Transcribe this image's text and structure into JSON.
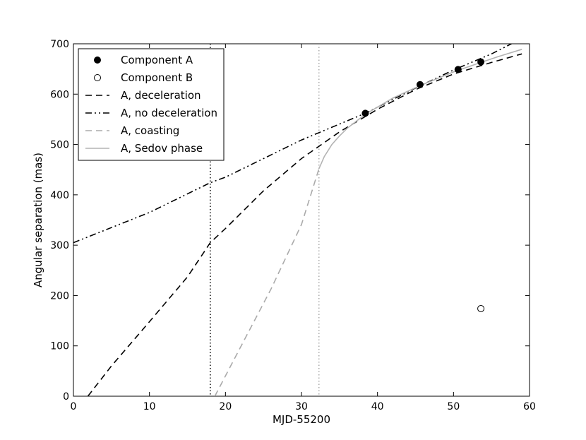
{
  "chart_data": {
    "type": "line",
    "xlabel": "MJD-55200",
    "ylabel": "Angular separation (mas)",
    "xlim": [
      0,
      60
    ],
    "ylim": [
      0,
      700
    ],
    "xticks": [
      0,
      10,
      20,
      30,
      40,
      50,
      60
    ],
    "yticks": [
      0,
      100,
      200,
      300,
      400,
      500,
      600,
      700
    ],
    "grid": false,
    "legend_position": "top-left",
    "vertical_lines": [
      {
        "x": 18.0,
        "style": "dotted",
        "color": "#000000"
      },
      {
        "x": 32.3,
        "style": "dotted",
        "color": "#aaaaaa"
      }
    ],
    "series": [
      {
        "name": "Component A",
        "kind": "points",
        "marker": "filled-circle",
        "color": "#000000",
        "points": [
          [
            38.4,
            562
          ],
          [
            45.6,
            619
          ],
          [
            50.6,
            649
          ],
          [
            53.6,
            664
          ]
        ]
      },
      {
        "name": "Component B",
        "kind": "points",
        "marker": "open-circle",
        "color": "#000000",
        "points": [
          [
            53.6,
            174
          ]
        ]
      },
      {
        "name": "A, deceleration",
        "kind": "line",
        "style": "dashed",
        "color": "#000000",
        "points": [
          [
            1.9,
            0
          ],
          [
            5,
            60
          ],
          [
            10,
            148
          ],
          [
            15,
            237
          ],
          [
            18,
            305
          ],
          [
            20,
            333
          ],
          [
            25,
            408
          ],
          [
            30,
            472
          ],
          [
            35,
            525
          ],
          [
            40,
            570
          ],
          [
            45,
            609
          ],
          [
            50,
            640
          ],
          [
            55,
            663
          ],
          [
            59,
            680
          ]
        ]
      },
      {
        "name": "A, no deceleration",
        "kind": "line",
        "style": "dash-dot-dot",
        "color": "#000000",
        "points": [
          [
            0,
            305
          ],
          [
            10,
            365
          ],
          [
            18,
            424
          ],
          [
            20,
            435
          ],
          [
            30,
            509
          ],
          [
            38.4,
            562
          ],
          [
            45,
            612
          ],
          [
            50,
            648
          ],
          [
            55,
            680
          ],
          [
            58,
            703
          ]
        ]
      },
      {
        "name": "A, coasting",
        "kind": "line",
        "style": "dashed",
        "color": "#aaaaaa",
        "points": [
          [
            18.6,
            0
          ],
          [
            22,
            98
          ],
          [
            26,
            213
          ],
          [
            30,
            341
          ],
          [
            32.3,
            452
          ]
        ]
      },
      {
        "name": "A, Sedov phase",
        "kind": "line",
        "style": "solid",
        "color": "#b3b3b3",
        "points": [
          [
            32.3,
            452
          ],
          [
            33,
            476
          ],
          [
            34,
            500
          ],
          [
            35,
            517
          ],
          [
            36,
            532
          ],
          [
            38.4,
            560
          ],
          [
            42,
            592
          ],
          [
            45.6,
            617
          ],
          [
            50,
            644
          ],
          [
            53.6,
            663
          ],
          [
            56,
            675
          ],
          [
            59,
            689
          ]
        ]
      }
    ]
  }
}
